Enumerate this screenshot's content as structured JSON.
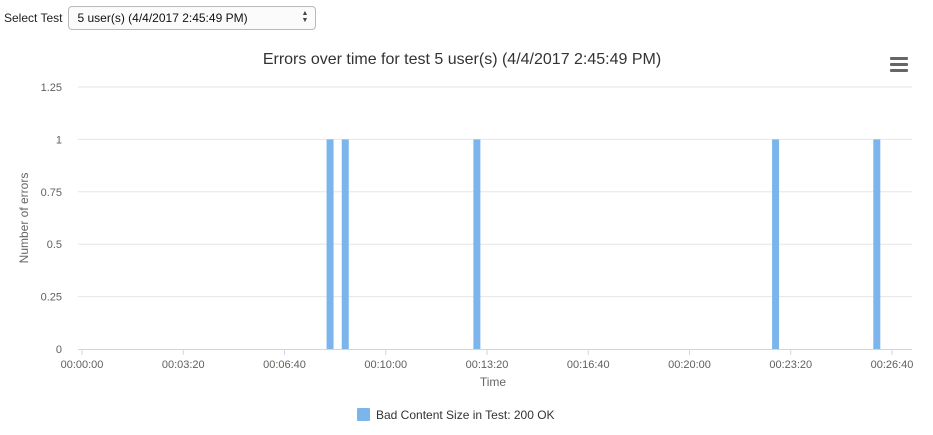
{
  "select": {
    "label": "Select Test",
    "value": "5 user(s) (4/4/2017 2:45:49 PM)"
  },
  "chart_data": {
    "type": "bar",
    "title": "Errors over time for test 5 user(s) (4/4/2017 2:45:49 PM)",
    "xlabel": "Time",
    "ylabel": "Number of errors",
    "x_ticks": [
      "00:00:00",
      "00:03:20",
      "00:06:40",
      "00:10:00",
      "00:13:20",
      "00:16:40",
      "00:20:00",
      "00:23:20",
      "00:26:40"
    ],
    "y_ticks": [
      "0",
      "0.25",
      "0.5",
      "0.75",
      "1",
      "1.25"
    ],
    "ylim": [
      0,
      1.25
    ],
    "xlim": [
      "00:00:00",
      "00:26:40"
    ],
    "grid": true,
    "legend_position": "bottom-center",
    "series": [
      {
        "name": "Bad Content Size in Test: 200 OK",
        "color": "#7cb5ec",
        "points": [
          {
            "x": "00:08:10",
            "y": 1
          },
          {
            "x": "00:08:40",
            "y": 1
          },
          {
            "x": "00:13:00",
            "y": 1
          },
          {
            "x": "00:22:50",
            "y": 1
          },
          {
            "x": "00:26:10",
            "y": 1
          }
        ]
      }
    ]
  }
}
